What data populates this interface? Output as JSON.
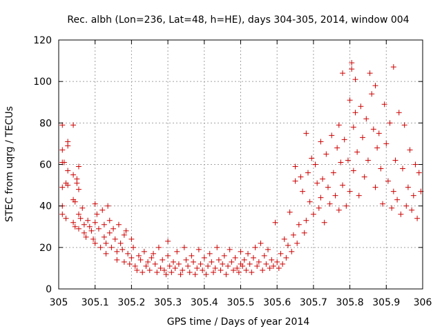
{
  "chart_data": {
    "type": "scatter",
    "title": "Rec. albh (Lon=236, Lat=48, h=HE), days 304-305, 2014, window 004",
    "xlabel": "GPS time / Days of year 2014",
    "ylabel": "STEC from uqrg / TECUs",
    "xlim": [
      305,
      306
    ],
    "ylim": [
      0,
      120
    ],
    "x_ticks": [
      305,
      305.1,
      305.2,
      305.3,
      305.4,
      305.5,
      305.6,
      305.7,
      305.8,
      305.9,
      306
    ],
    "x_tick_labels": [
      "305",
      "305.1",
      "305.2",
      "305.3",
      "305.4",
      "305.5",
      "305.6",
      "305.7",
      "305.8",
      "305.9",
      "306"
    ],
    "y_ticks": [
      0,
      20,
      40,
      60,
      80,
      100,
      120
    ],
    "y_tick_labels": [
      "0",
      "20",
      "40",
      "60",
      "80",
      "100",
      "120"
    ],
    "grid": true,
    "marker": "+",
    "marker_color": "#cc0000",
    "series": [
      {
        "points": [
          [
            305.01,
            79
          ],
          [
            305.01,
            67
          ],
          [
            305.01,
            61
          ],
          [
            305.01,
            49
          ],
          [
            305.01,
            40
          ],
          [
            305.01,
            36
          ],
          [
            305.015,
            61
          ],
          [
            305.02,
            51
          ],
          [
            305.02,
            34
          ],
          [
            305.025,
            71
          ],
          [
            305.025,
            69
          ],
          [
            305.025,
            57
          ],
          [
            305.025,
            50
          ],
          [
            305.04,
            79
          ],
          [
            305.04,
            55
          ],
          [
            305.04,
            43
          ],
          [
            305.04,
            32
          ],
          [
            305.045,
            42
          ],
          [
            305.045,
            30
          ],
          [
            305.05,
            53
          ],
          [
            305.05,
            51
          ],
          [
            305.055,
            59
          ],
          [
            305.055,
            48
          ],
          [
            305.055,
            36
          ],
          [
            305.055,
            29
          ],
          [
            305.06,
            34
          ],
          [
            305.065,
            39
          ],
          [
            305.07,
            31
          ],
          [
            305.07,
            27
          ],
          [
            305.075,
            25
          ],
          [
            305.08,
            33
          ],
          [
            305.085,
            30
          ],
          [
            305.09,
            28
          ],
          [
            305.095,
            24
          ],
          [
            305.1,
            41
          ],
          [
            305.1,
            32
          ],
          [
            305.1,
            22
          ],
          [
            305.105,
            36
          ],
          [
            305.11,
            29
          ],
          [
            305.115,
            20
          ],
          [
            305.12,
            38
          ],
          [
            305.125,
            31
          ],
          [
            305.125,
            25
          ],
          [
            305.13,
            22
          ],
          [
            305.13,
            17
          ],
          [
            305.135,
            40
          ],
          [
            305.14,
            33
          ],
          [
            305.14,
            27
          ],
          [
            305.145,
            20
          ],
          [
            305.15,
            29
          ],
          [
            305.155,
            24
          ],
          [
            305.16,
            18
          ],
          [
            305.16,
            14
          ],
          [
            305.165,
            31
          ],
          [
            305.17,
            22
          ],
          [
            305.175,
            19
          ],
          [
            305.18,
            26
          ],
          [
            305.18,
            13
          ],
          [
            305.185,
            28
          ],
          [
            305.19,
            17
          ],
          [
            305.195,
            12
          ],
          [
            305.2,
            24
          ],
          [
            305.2,
            15
          ],
          [
            305.205,
            20
          ],
          [
            305.21,
            11
          ],
          [
            305.215,
            9
          ],
          [
            305.22,
            16
          ],
          [
            305.225,
            14
          ],
          [
            305.23,
            8
          ],
          [
            305.235,
            18
          ],
          [
            305.24,
            11
          ],
          [
            305.245,
            13
          ],
          [
            305.25,
            9
          ],
          [
            305.255,
            15
          ],
          [
            305.26,
            17
          ],
          [
            305.265,
            12
          ],
          [
            305.27,
            8
          ],
          [
            305.275,
            20
          ],
          [
            305.28,
            10
          ],
          [
            305.285,
            14
          ],
          [
            305.29,
            9
          ],
          [
            305.295,
            7
          ],
          [
            305.3,
            23
          ],
          [
            305.3,
            16
          ],
          [
            305.305,
            11
          ],
          [
            305.31,
            8
          ],
          [
            305.315,
            13
          ],
          [
            305.32,
            10
          ],
          [
            305.325,
            18
          ],
          [
            305.33,
            12
          ],
          [
            305.335,
            7
          ],
          [
            305.34,
            9
          ],
          [
            305.345,
            20
          ],
          [
            305.35,
            14
          ],
          [
            305.355,
            11
          ],
          [
            305.36,
            8
          ],
          [
            305.365,
            16
          ],
          [
            305.37,
            13
          ],
          [
            305.375,
            7
          ],
          [
            305.38,
            10
          ],
          [
            305.385,
            19
          ],
          [
            305.39,
            12
          ],
          [
            305.395,
            9
          ],
          [
            305.4,
            15
          ],
          [
            305.405,
            7
          ],
          [
            305.41,
            11
          ],
          [
            305.415,
            17
          ],
          [
            305.42,
            13
          ],
          [
            305.425,
            8
          ],
          [
            305.43,
            10
          ],
          [
            305.435,
            20
          ],
          [
            305.44,
            14
          ],
          [
            305.445,
            9
          ],
          [
            305.45,
            12
          ],
          [
            305.455,
            16
          ],
          [
            305.46,
            7
          ],
          [
            305.465,
            11
          ],
          [
            305.47,
            19
          ],
          [
            305.475,
            13
          ],
          [
            305.48,
            9
          ],
          [
            305.485,
            15
          ],
          [
            305.49,
            10
          ],
          [
            305.495,
            8
          ],
          [
            305.5,
            12
          ],
          [
            305.5,
            18
          ],
          [
            305.505,
            11
          ],
          [
            305.51,
            14
          ],
          [
            305.515,
            9
          ],
          [
            305.52,
            17
          ],
          [
            305.525,
            12
          ],
          [
            305.53,
            8
          ],
          [
            305.535,
            15
          ],
          [
            305.54,
            20
          ],
          [
            305.545,
            11
          ],
          [
            305.55,
            13
          ],
          [
            305.555,
            22
          ],
          [
            305.56,
            9
          ],
          [
            305.565,
            16
          ],
          [
            305.57,
            12
          ],
          [
            305.575,
            19
          ],
          [
            305.58,
            10
          ],
          [
            305.585,
            14
          ],
          [
            305.59,
            11
          ],
          [
            305.595,
            32
          ],
          [
            305.6,
            13
          ],
          [
            305.605,
            10
          ],
          [
            305.61,
            17
          ],
          [
            305.615,
            12
          ],
          [
            305.62,
            24
          ],
          [
            305.625,
            15
          ],
          [
            305.63,
            21
          ],
          [
            305.635,
            37
          ],
          [
            305.64,
            18
          ],
          [
            305.645,
            26
          ],
          [
            305.65,
            59
          ],
          [
            305.65,
            52
          ],
          [
            305.655,
            22
          ],
          [
            305.66,
            31
          ],
          [
            305.665,
            54
          ],
          [
            305.67,
            47
          ],
          [
            305.675,
            27
          ],
          [
            305.68,
            75
          ],
          [
            305.68,
            33
          ],
          [
            305.685,
            56
          ],
          [
            305.69,
            42
          ],
          [
            305.695,
            63
          ],
          [
            305.7,
            36
          ],
          [
            305.705,
            60
          ],
          [
            305.71,
            51
          ],
          [
            305.715,
            39
          ],
          [
            305.72,
            71
          ],
          [
            305.72,
            44
          ],
          [
            305.725,
            53
          ],
          [
            305.73,
            32
          ],
          [
            305.735,
            65
          ],
          [
            305.74,
            49
          ],
          [
            305.745,
            41
          ],
          [
            305.75,
            74
          ],
          [
            305.755,
            56
          ],
          [
            305.76,
            45
          ],
          [
            305.765,
            68
          ],
          [
            305.77,
            79
          ],
          [
            305.77,
            38
          ],
          [
            305.775,
            61
          ],
          [
            305.78,
            104
          ],
          [
            305.78,
            50
          ],
          [
            305.785,
            72
          ],
          [
            305.79,
            40
          ],
          [
            305.795,
            62
          ],
          [
            305.8,
            91
          ],
          [
            305.8,
            47
          ],
          [
            305.805,
            109
          ],
          [
            305.805,
            106
          ],
          [
            305.81,
            78
          ],
          [
            305.81,
            57
          ],
          [
            305.815,
            101
          ],
          [
            305.815,
            85
          ],
          [
            305.82,
            66
          ],
          [
            305.825,
            45
          ],
          [
            305.83,
            88
          ],
          [
            305.835,
            73
          ],
          [
            305.84,
            54
          ],
          [
            305.845,
            82
          ],
          [
            305.85,
            62
          ],
          [
            305.855,
            104
          ],
          [
            305.86,
            94
          ],
          [
            305.865,
            77
          ],
          [
            305.87,
            98
          ],
          [
            305.87,
            49
          ],
          [
            305.875,
            68
          ],
          [
            305.88,
            75
          ],
          [
            305.885,
            58
          ],
          [
            305.89,
            41
          ],
          [
            305.895,
            89
          ],
          [
            305.9,
            70
          ],
          [
            305.905,
            52
          ],
          [
            305.91,
            80
          ],
          [
            305.915,
            39
          ],
          [
            305.92,
            107
          ],
          [
            305.92,
            47
          ],
          [
            305.925,
            62
          ],
          [
            305.93,
            43
          ],
          [
            305.935,
            85
          ],
          [
            305.94,
            36
          ],
          [
            305.945,
            58
          ],
          [
            305.95,
            79
          ],
          [
            305.955,
            40
          ],
          [
            305.96,
            49
          ],
          [
            305.965,
            67
          ],
          [
            305.97,
            38
          ],
          [
            305.975,
            45
          ],
          [
            305.98,
            60
          ],
          [
            305.985,
            34
          ],
          [
            305.99,
            56
          ],
          [
            305.995,
            47
          ]
        ]
      }
    ]
  }
}
